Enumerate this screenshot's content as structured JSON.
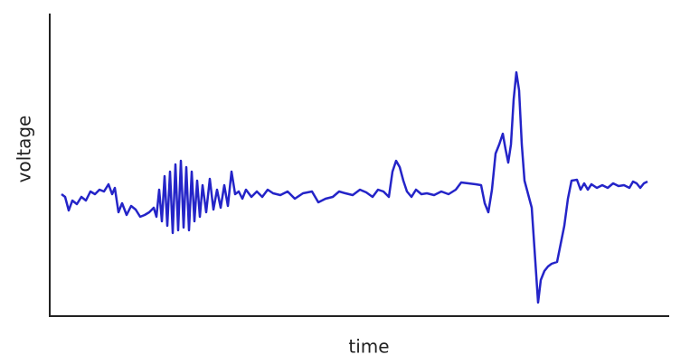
{
  "chart_data": {
    "type": "line",
    "xlabel": "time",
    "ylabel": "voltage",
    "xlim": [
      0,
      685
    ],
    "ylim": [
      0,
      335
    ],
    "xticks": [],
    "yticks": [],
    "series": [
      {
        "color": "#2424c8",
        "x": [
          13,
          17,
          21,
          25,
          30,
          35,
          40,
          45,
          50,
          55,
          60,
          65,
          69,
          72,
          76,
          80,
          85,
          90,
          95,
          100,
          105,
          110,
          115,
          118,
          121,
          124,
          127,
          130,
          133,
          136,
          139,
          142,
          145,
          148,
          151,
          154,
          157,
          160,
          163,
          166,
          169,
          173,
          177,
          181,
          185,
          189,
          193,
          197,
          201,
          205,
          209,
          213,
          217,
          223,
          229,
          235,
          241,
          247,
          255,
          263,
          271,
          280,
          290,
          297,
          305,
          313,
          320,
          327,
          335,
          343,
          350,
          357,
          363,
          369,
          375,
          379,
          383,
          387,
          391,
          395,
          400,
          405,
          411,
          417,
          425,
          433,
          441,
          449,
          455,
          463,
          471,
          477,
          481,
          485,
          489,
          493,
          497,
          501,
          504,
          507,
          510,
          513,
          516,
          519,
          522,
          525,
          529,
          533,
          537,
          540,
          543,
          547,
          551,
          555,
          561,
          565,
          569,
          573,
          577,
          583,
          587,
          591,
          595,
          599,
          605,
          611,
          617,
          623,
          629,
          635,
          641,
          645,
          649,
          653,
          657,
          661
        ],
        "values": [
          135,
          132,
          117,
          128,
          124,
          132,
          128,
          138,
          135,
          140,
          138,
          146,
          135,
          142,
          115,
          125,
          112,
          122,
          118,
          110,
          112,
          115,
          120,
          110,
          140,
          105,
          155,
          100,
          160,
          92,
          168,
          95,
          172,
          98,
          165,
          95,
          160,
          105,
          150,
          110,
          145,
          115,
          152,
          118,
          140,
          120,
          145,
          122,
          160,
          135,
          138,
          130,
          140,
          132,
          138,
          132,
          140,
          136,
          134,
          138,
          130,
          136,
          138,
          126,
          130,
          132,
          138,
          136,
          134,
          140,
          137,
          132,
          140,
          138,
          132,
          160,
          172,
          165,
          150,
          138,
          132,
          140,
          135,
          136,
          134,
          138,
          135,
          140,
          148,
          147,
          146,
          145,
          125,
          115,
          140,
          180,
          190,
          202,
          185,
          170,
          190,
          240,
          270,
          250,
          190,
          150,
          135,
          120,
          60,
          15,
          40,
          50,
          55,
          58,
          60,
          80,
          100,
          130,
          150,
          151,
          140,
          147,
          140,
          146,
          142,
          145,
          142,
          147,
          144,
          145,
          142,
          149,
          147,
          142,
          147,
          149
        ]
      }
    ]
  }
}
